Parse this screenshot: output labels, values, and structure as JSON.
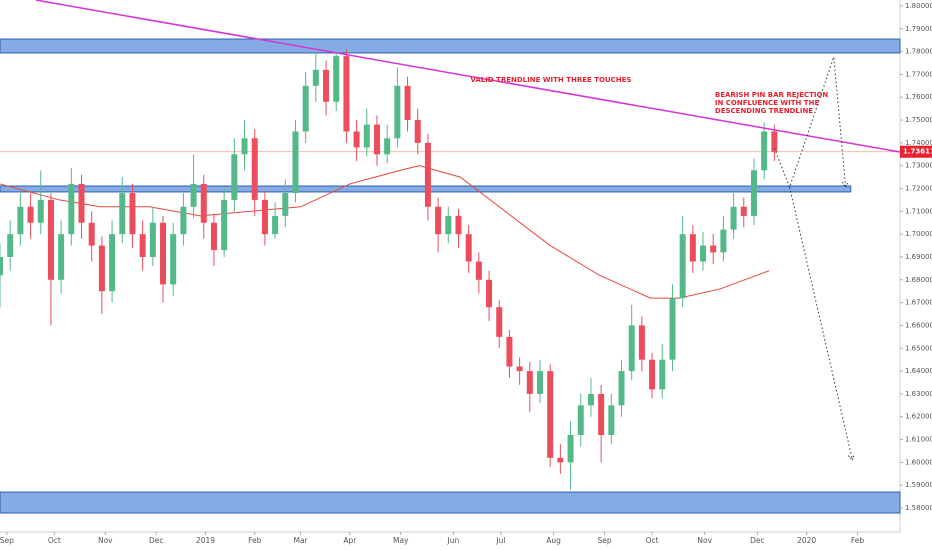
{
  "chart_data": {
    "type": "candlestick",
    "up_color": "#53b987",
    "down_color": "#eb4d5c",
    "xlim": [
      0,
      530
    ],
    "ylim": [
      1.5695,
      1.8026
    ],
    "x": [
      0,
      6,
      12,
      18,
      24,
      30,
      36,
      42,
      48,
      54,
      60,
      66,
      72,
      78,
      84,
      90,
      96,
      102,
      108,
      114,
      120,
      126,
      132,
      138,
      144,
      150,
      156,
      162,
      168,
      174,
      180,
      186,
      192,
      198,
      204,
      210,
      216,
      222,
      228,
      234,
      240,
      246,
      252,
      258,
      264,
      270,
      276,
      282,
      288,
      294,
      300,
      306,
      312,
      318,
      324,
      330,
      336,
      342,
      348,
      354,
      360,
      366,
      372,
      378,
      384,
      390,
      396,
      402,
      408,
      414,
      420,
      426,
      432,
      438,
      444,
      450,
      456
    ],
    "open": [
      1.682,
      1.69,
      1.7,
      1.712,
      1.705,
      1.715,
      1.68,
      1.7,
      1.722,
      1.705,
      1.695,
      1.675,
      1.7,
      1.718,
      1.7,
      1.69,
      1.705,
      1.678,
      1.7,
      1.712,
      1.722,
      1.705,
      1.693,
      1.715,
      1.735,
      1.742,
      1.715,
      1.7,
      1.708,
      1.718,
      1.745,
      1.765,
      1.772,
      1.758,
      1.778,
      1.745,
      1.738,
      1.748,
      1.735,
      1.742,
      1.765,
      1.75,
      1.74,
      1.712,
      1.7,
      1.708,
      1.7,
      1.688,
      1.68,
      1.668,
      1.655,
      1.642,
      1.64,
      1.63,
      1.64,
      1.602,
      1.6,
      1.612,
      1.625,
      1.63,
      1.612,
      1.625,
      1.64,
      1.66,
      1.645,
      1.632,
      1.645,
      1.672,
      1.7,
      1.688,
      1.695,
      1.692,
      1.702,
      1.712,
      1.708,
      1.728,
      1.745
    ],
    "high": [
      1.696,
      1.706,
      1.718,
      1.718,
      1.728,
      1.718,
      1.706,
      1.729,
      1.726,
      1.71,
      1.699,
      1.706,
      1.725,
      1.722,
      1.706,
      1.712,
      1.708,
      1.705,
      1.718,
      1.735,
      1.726,
      1.709,
      1.72,
      1.742,
      1.75,
      1.746,
      1.719,
      1.714,
      1.724,
      1.75,
      1.771,
      1.78,
      1.776,
      1.78,
      1.781,
      1.75,
      1.755,
      1.752,
      1.748,
      1.773,
      1.769,
      1.755,
      1.744,
      1.716,
      1.712,
      1.711,
      1.704,
      1.692,
      1.684,
      1.671,
      1.658,
      1.646,
      1.644,
      1.645,
      1.643,
      1.608,
      1.618,
      1.63,
      1.637,
      1.634,
      1.63,
      1.645,
      1.669,
      1.664,
      1.648,
      1.652,
      1.678,
      1.708,
      1.704,
      1.701,
      1.7,
      1.708,
      1.718,
      1.716,
      1.733,
      1.749,
      1.748
    ],
    "low": [
      1.668,
      1.684,
      1.695,
      1.698,
      1.7,
      1.66,
      1.674,
      1.695,
      1.698,
      1.688,
      1.665,
      1.67,
      1.696,
      1.694,
      1.684,
      1.686,
      1.67,
      1.673,
      1.695,
      1.707,
      1.698,
      1.686,
      1.69,
      1.71,
      1.728,
      1.708,
      1.695,
      1.698,
      1.703,
      1.714,
      1.74,
      1.758,
      1.752,
      1.754,
      1.74,
      1.732,
      1.734,
      1.73,
      1.731,
      1.738,
      1.745,
      1.735,
      1.706,
      1.692,
      1.696,
      1.694,
      1.683,
      1.674,
      1.662,
      1.65,
      1.637,
      1.634,
      1.622,
      1.626,
      1.598,
      1.595,
      1.588,
      1.607,
      1.62,
      1.6,
      1.608,
      1.62,
      1.636,
      1.64,
      1.628,
      1.628,
      1.64,
      1.668,
      1.683,
      1.684,
      1.687,
      1.688,
      1.698,
      1.703,
      1.704,
      1.724,
      1.732
    ],
    "close": [
      1.69,
      1.7,
      1.712,
      1.705,
      1.715,
      1.68,
      1.7,
      1.722,
      1.705,
      1.695,
      1.675,
      1.7,
      1.718,
      1.7,
      1.69,
      1.705,
      1.678,
      1.7,
      1.712,
      1.722,
      1.705,
      1.693,
      1.715,
      1.735,
      1.742,
      1.715,
      1.7,
      1.708,
      1.718,
      1.745,
      1.765,
      1.772,
      1.758,
      1.778,
      1.745,
      1.738,
      1.748,
      1.735,
      1.742,
      1.765,
      1.75,
      1.74,
      1.712,
      1.7,
      1.708,
      1.7,
      1.688,
      1.68,
      1.668,
      1.655,
      1.642,
      1.64,
      1.63,
      1.64,
      1.602,
      1.6,
      1.612,
      1.625,
      1.63,
      1.612,
      1.625,
      1.64,
      1.66,
      1.645,
      1.632,
      1.645,
      1.672,
      1.7,
      1.688,
      1.695,
      1.692,
      1.702,
      1.712,
      1.708,
      1.728,
      1.745,
      1.73611
    ],
    "ma": {
      "color": "#e8453c",
      "x": [
        0,
        35,
        59,
        88,
        118,
        147,
        177,
        206,
        236,
        247,
        271,
        294,
        324,
        353,
        383,
        400,
        424,
        453
      ],
      "values": [
        1.722,
        1.715,
        1.712,
        1.712,
        1.708,
        1.71,
        1.712,
        1.722,
        1.728,
        1.73,
        1.725,
        1.712,
        1.695,
        1.682,
        1.672,
        1.672,
        1.676,
        1.684
      ]
    },
    "trendline": {
      "color": "#d633d6",
      "x": [
        21,
        530
      ],
      "values": [
        1.8026,
        1.736
      ]
    },
    "zones": [
      {
        "x": [
          0,
          530
        ],
        "values": [
          1.7855,
          1.7794
        ]
      },
      {
        "x": [
          0,
          501
        ],
        "values": [
          1.7211,
          1.7185
        ]
      },
      {
        "x": [
          0,
          530
        ],
        "values": [
          1.587,
          1.5778
        ]
      }
    ],
    "zone_color": "#5b8fd9",
    "projections": [
      {
        "x": [
          456,
          465,
          491,
          498
        ],
        "values": [
          1.7377,
          1.7206,
          1.7776,
          1.7206
        ]
      },
      {
        "x": [
          465,
          502
        ],
        "values": [
          1.7206,
          1.601
        ]
      }
    ],
    "last_price": 1.73611,
    "last_price_color": "#e8212f",
    "annotations": [
      {
        "text": "VALID TRENDLINE WITH THREE TOUCHES",
        "x": 277,
        "y": 1.7675
      },
      {
        "text": "BEARISH PIN BAR REJECTION",
        "x": 421,
        "y": 1.761
      },
      {
        "text": "IN CONFLUENCE WITH THE",
        "x": 421,
        "y": 1.7575
      },
      {
        "text": "DESCENDING TRENDLINE",
        "x": 421,
        "y": 1.754
      }
    ],
    "yticks": [
      {
        "value": 1.58,
        "label": "1.58000"
      },
      {
        "value": 1.59,
        "label": "1.59000"
      },
      {
        "value": 1.6,
        "label": "1.60000"
      },
      {
        "value": 1.61,
        "label": "1.61000"
      },
      {
        "value": 1.62,
        "label": "1.62000"
      },
      {
        "value": 1.63,
        "label": "1.63000"
      },
      {
        "value": 1.64,
        "label": "1.64000"
      },
      {
        "value": 1.65,
        "label": "1.65000"
      },
      {
        "value": 1.66,
        "label": "1.66000"
      },
      {
        "value": 1.67,
        "label": "1.67000"
      },
      {
        "value": 1.68,
        "label": "1.68000"
      },
      {
        "value": 1.69,
        "label": "1.69000"
      },
      {
        "value": 1.7,
        "label": "1.70000"
      },
      {
        "value": 1.71,
        "label": "1.71000"
      },
      {
        "value": 1.72,
        "label": "1.72000"
      },
      {
        "value": 1.73,
        "label": "1.73000"
      },
      {
        "value": 1.74,
        "label": "1.74000"
      },
      {
        "value": 1.75,
        "label": "1.75000"
      },
      {
        "value": 1.76,
        "label": "1.76000"
      },
      {
        "value": 1.77,
        "label": "1.77000"
      },
      {
        "value": 1.78,
        "label": "1.78000"
      },
      {
        "value": 1.79,
        "label": "1.79000"
      },
      {
        "value": 1.8,
        "label": "1.80000"
      }
    ],
    "xticks": [
      {
        "value": 4,
        "label": "Sep"
      },
      {
        "value": 32,
        "label": "Oct"
      },
      {
        "value": 62,
        "label": "Nov"
      },
      {
        "value": 92,
        "label": "Dec"
      },
      {
        "value": 121,
        "label": "2019"
      },
      {
        "value": 150,
        "label": "Feb"
      },
      {
        "value": 177,
        "label": "Mar"
      },
      {
        "value": 206,
        "label": "Apr"
      },
      {
        "value": 236,
        "label": "May"
      },
      {
        "value": 267,
        "label": "Jun"
      },
      {
        "value": 295,
        "label": "Jul"
      },
      {
        "value": 326,
        "label": "Aug"
      },
      {
        "value": 356,
        "label": "Sep"
      },
      {
        "value": 384,
        "label": "Oct"
      },
      {
        "value": 415,
        "label": "Nov"
      },
      {
        "value": 446,
        "label": "Dec"
      },
      {
        "value": 475,
        "label": "2020"
      },
      {
        "value": 505,
        "label": "Feb"
      }
    ]
  }
}
